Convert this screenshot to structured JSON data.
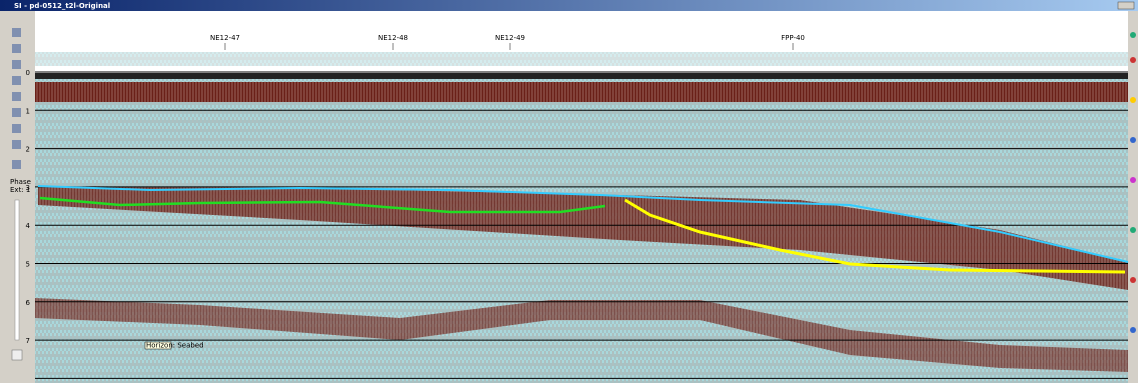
{
  "window": {
    "title": "SI - pd-0512_t2l-Original"
  },
  "toolbar": {
    "phase_label": "Phase",
    "ext_label": "Ext: 1"
  },
  "section": {
    "line_labels": [
      "NE12-47",
      "NE12-48",
      "NE12-49",
      "FPP-40"
    ],
    "depth_labels": [
      "0",
      "1",
      "2",
      "3",
      "4",
      "5",
      "6",
      "7"
    ],
    "tooltip": "Horizon: Seabed"
  }
}
